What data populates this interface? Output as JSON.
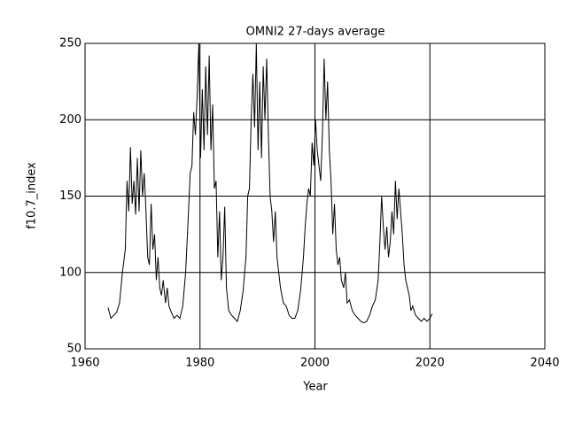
{
  "chart_data": {
    "type": "line",
    "title": "OMNI2 27-days average",
    "x_label": "Year",
    "y_label": "f10.7_index",
    "x": [
      1964.0,
      1964.5,
      1965.0,
      1965.5,
      1966.0,
      1966.5,
      1967.0,
      1967.3,
      1967.6,
      1967.9,
      1968.2,
      1968.5,
      1968.8,
      1969.1,
      1969.4,
      1969.7,
      1970.0,
      1970.3,
      1970.6,
      1970.9,
      1971.2,
      1971.5,
      1971.8,
      1972.1,
      1972.4,
      1972.7,
      1973.0,
      1973.3,
      1973.6,
      1974.0,
      1974.3,
      1974.6,
      1975.0,
      1975.5,
      1976.0,
      1976.5,
      1977.0,
      1977.5,
      1978.0,
      1978.3,
      1978.6,
      1978.9,
      1979.2,
      1979.5,
      1979.8,
      1980.1,
      1980.4,
      1980.7,
      1981.0,
      1981.3,
      1981.6,
      1981.9,
      1982.2,
      1982.5,
      1982.8,
      1983.1,
      1983.4,
      1983.7,
      1984.0,
      1984.3,
      1984.6,
      1985.0,
      1985.5,
      1986.0,
      1986.5,
      1987.0,
      1987.5,
      1988.0,
      1988.3,
      1988.6,
      1988.9,
      1989.2,
      1989.5,
      1989.8,
      1990.1,
      1990.4,
      1990.7,
      1991.0,
      1991.3,
      1991.6,
      1991.9,
      1992.2,
      1992.5,
      1992.8,
      1993.1,
      1993.4,
      1993.7,
      1994.0,
      1994.5,
      1995.0,
      1995.5,
      1996.0,
      1996.5,
      1997.0,
      1997.5,
      1998.0,
      1998.3,
      1998.6,
      1998.9,
      1999.2,
      1999.5,
      1999.8,
      2000.1,
      2000.4,
      2000.7,
      2001.0,
      2001.3,
      2001.6,
      2001.9,
      2002.2,
      2002.5,
      2002.8,
      2003.1,
      2003.4,
      2003.7,
      2004.0,
      2004.3,
      2004.6,
      2005.0,
      2005.3,
      2005.6,
      2006.0,
      2006.5,
      2007.0,
      2007.5,
      2008.0,
      2008.5,
      2009.0,
      2009.5,
      2010.0,
      2010.5,
      2011.0,
      2011.3,
      2011.6,
      2011.9,
      2012.2,
      2012.5,
      2012.8,
      2013.1,
      2013.4,
      2013.7,
      2014.0,
      2014.3,
      2014.6,
      2014.9,
      2015.2,
      2015.5,
      2015.8,
      2016.1,
      2016.4,
      2016.7,
      2017.0,
      2017.5,
      2018.0,
      2018.5,
      2019.0,
      2019.5,
      2020.0,
      2020.4
    ],
    "values": [
      77,
      70,
      72,
      74,
      80,
      100,
      115,
      160,
      140,
      182,
      145,
      160,
      138,
      175,
      140,
      180,
      150,
      165,
      140,
      110,
      105,
      145,
      115,
      125,
      95,
      110,
      90,
      85,
      95,
      80,
      90,
      78,
      74,
      70,
      72,
      70,
      78,
      100,
      140,
      165,
      170,
      205,
      190,
      215,
      250,
      175,
      220,
      180,
      235,
      190,
      242,
      180,
      210,
      155,
      160,
      110,
      140,
      95,
      110,
      143,
      90,
      75,
      72,
      70,
      68,
      75,
      88,
      110,
      150,
      155,
      200,
      230,
      195,
      250,
      180,
      225,
      175,
      235,
      200,
      240,
      190,
      150,
      140,
      120,
      140,
      110,
      100,
      90,
      80,
      78,
      72,
      70,
      70,
      75,
      88,
      110,
      130,
      145,
      155,
      150,
      185,
      170,
      200,
      180,
      170,
      160,
      190,
      240,
      200,
      225,
      180,
      160,
      125,
      145,
      115,
      105,
      110,
      95,
      90,
      100,
      80,
      82,
      75,
      72,
      70,
      68,
      67,
      68,
      72,
      78,
      82,
      95,
      120,
      150,
      130,
      115,
      130,
      110,
      120,
      140,
      125,
      160,
      135,
      155,
      140,
      125,
      105,
      95,
      90,
      85,
      75,
      78,
      72,
      70,
      68,
      70,
      68,
      70,
      73
    ],
    "color": "#000000",
    "xlim": [
      1960,
      2040
    ],
    "xticks": [
      1960,
      1980,
      2000,
      2020,
      2040
    ],
    "ylim": [
      50,
      250
    ],
    "yticks": [
      50,
      100,
      150,
      200,
      250
    ],
    "grid": true
  }
}
